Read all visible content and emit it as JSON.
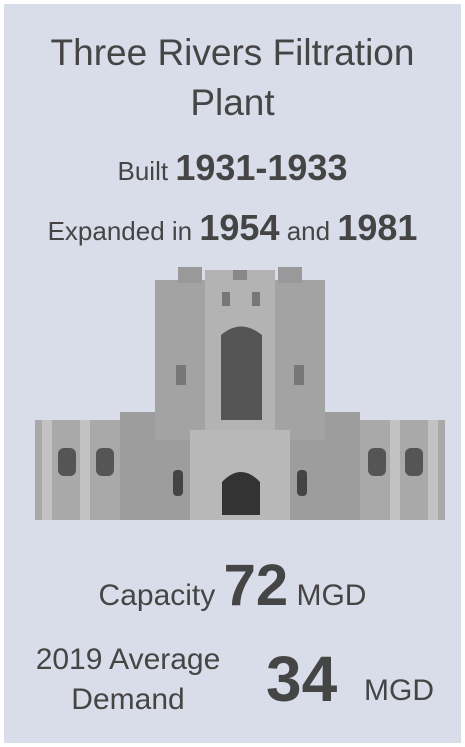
{
  "title": "Three Rivers Filtration Plant",
  "built": {
    "label": "Built",
    "years": "1931-1933"
  },
  "expanded": {
    "label": "Expanded in",
    "first": "1954",
    "conjunction": "and",
    "second": "1981"
  },
  "capacity": {
    "label": "Capacity",
    "value": 72,
    "unit": "MGD"
  },
  "demand": {
    "label": "2019 Average Demand",
    "value": 34,
    "unit": "MGD"
  }
}
